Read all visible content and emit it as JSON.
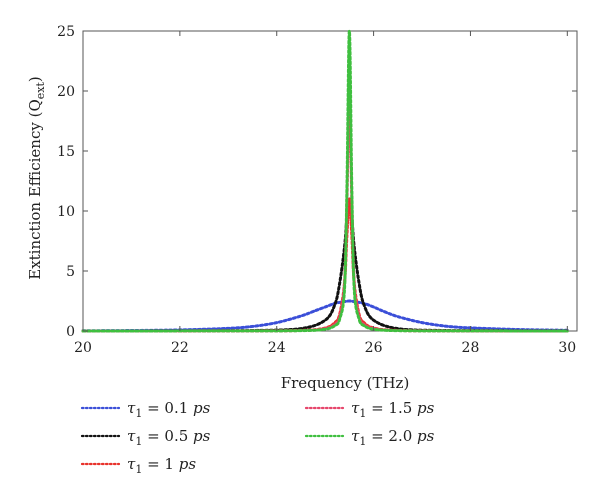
{
  "chart_data": {
    "type": "line",
    "xlabel": "Frequency (THz)",
    "ylabel_main": "Extinction Efficiency (Q",
    "ylabel_sub": "ext",
    "ylabel_close": ")",
    "xlim": [
      20,
      30.2
    ],
    "ylim": [
      0,
      25
    ],
    "x_ticks": [
      20,
      22,
      24,
      26,
      28,
      30
    ],
    "y_ticks": [
      0,
      5,
      10,
      15,
      20,
      25
    ],
    "grid": false,
    "legend_position": "bottom",
    "line_style": "dotted",
    "series": [
      {
        "name": "τ₁ = 0.1 ps",
        "label_sym": "τ",
        "label_sub": "1",
        "label_eq": " = 0.1 ",
        "label_unit": "ps",
        "color": "#3b4fd8",
        "x": [
          20.0,
          21.0,
          22.0,
          23.0,
          23.5,
          24.0,
          24.5,
          24.8,
          25.0,
          25.2,
          25.4,
          25.5,
          25.6,
          25.8,
          26.0,
          26.2,
          26.5,
          27.0,
          27.5,
          28.0,
          29.0,
          30.0
        ],
        "y": [
          0.02,
          0.04,
          0.09,
          0.22,
          0.38,
          0.7,
          1.25,
          1.7,
          2.0,
          2.3,
          2.45,
          2.5,
          2.45,
          2.3,
          2.0,
          1.65,
          1.2,
          0.7,
          0.4,
          0.26,
          0.12,
          0.06
        ]
      },
      {
        "name": "τ₁ = 0.5 ps",
        "label_sym": "τ",
        "label_sub": "1",
        "label_eq": " = 0.5 ",
        "label_unit": "ps",
        "color": "#111111",
        "x": [
          20.0,
          22.0,
          23.5,
          24.5,
          25.0,
          25.2,
          25.3,
          25.4,
          25.45,
          25.5,
          25.55,
          25.6,
          25.7,
          25.8,
          26.0,
          26.5,
          27.5,
          30.0
        ],
        "y": [
          0.0,
          0.01,
          0.04,
          0.2,
          0.9,
          2.2,
          4.0,
          7.0,
          9.5,
          11.0,
          9.5,
          7.0,
          4.0,
          2.2,
          0.9,
          0.2,
          0.04,
          0.01
        ]
      },
      {
        "name": "τ₁ = 1 ps",
        "label_sym": "τ",
        "label_sub": "1",
        "label_eq": " = 1 ",
        "label_unit": "ps",
        "color": "#e8322b",
        "x": [
          20.0,
          23.0,
          24.5,
          25.0,
          25.2,
          25.3,
          25.4,
          25.45,
          25.5,
          25.55,
          25.6,
          25.7,
          25.8,
          26.0,
          26.5,
          28.0,
          30.0
        ],
        "y": [
          0.0,
          0.01,
          0.05,
          0.25,
          0.7,
          1.4,
          4.0,
          8.0,
          11.0,
          8.0,
          4.0,
          1.4,
          0.7,
          0.25,
          0.05,
          0.01,
          0.0
        ]
      },
      {
        "name": "τ₁ = 1.5 ps",
        "label_sym": "τ",
        "label_sub": "1",
        "label_eq": " = 1.5 ",
        "label_unit": "ps",
        "color": "#e6456b",
        "x": [
          20.0,
          23.0,
          24.5,
          25.0,
          25.2,
          25.3,
          25.4,
          25.45,
          25.5,
          25.55,
          25.6,
          25.7,
          25.8,
          26.0,
          26.5,
          28.0,
          30.0
        ],
        "y": [
          0.0,
          0.01,
          0.04,
          0.2,
          0.55,
          1.2,
          4.0,
          11.0,
          19.5,
          11.0,
          4.0,
          1.2,
          0.55,
          0.2,
          0.04,
          0.01,
          0.0
        ]
      },
      {
        "name": "τ₁ = 2.0 ps",
        "label_sym": "τ",
        "label_sub": "1",
        "label_eq": " = 2.0 ",
        "label_unit": "ps",
        "color": "#3fbf3f",
        "x": [
          20.0,
          23.0,
          24.5,
          25.0,
          25.2,
          25.3,
          25.4,
          25.45,
          25.5,
          25.55,
          25.6,
          25.7,
          25.8,
          26.0,
          26.5,
          28.0,
          30.0
        ],
        "y": [
          0.0,
          0.01,
          0.03,
          0.15,
          0.45,
          1.0,
          3.5,
          12.0,
          25.0,
          12.0,
          3.5,
          1.0,
          0.45,
          0.15,
          0.03,
          0.01,
          0.0
        ]
      }
    ]
  }
}
